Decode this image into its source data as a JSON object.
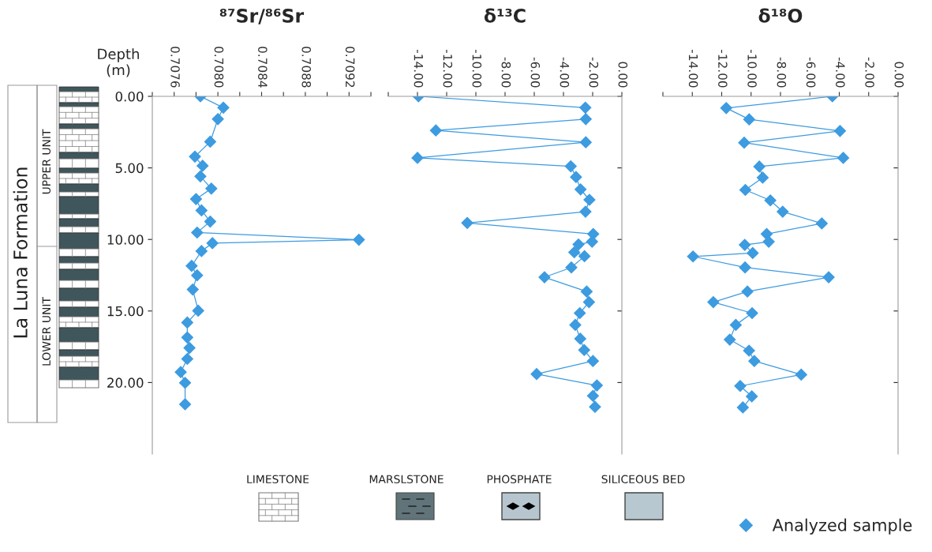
{
  "chart_data": [
    {
      "type": "line",
      "title": "⁸⁷Sr/⁸⁶Sr",
      "ylabel": "Depth\n(m)",
      "marker": "diamond",
      "line_style": "solid",
      "xlim": [
        0.7074,
        0.7094
      ],
      "xticks": [
        {
          "value": 0.7074,
          "label": null
        },
        0.7076,
        {
          "value": 0.7078,
          "label": null
        },
        {
          "value": 0.708,
          "label": "0.7080"
        },
        {
          "value": 0.7082,
          "label": null
        },
        0.7084,
        {
          "value": 0.7086,
          "label": null
        },
        0.7088,
        {
          "value": 0.709,
          "label": null
        },
        0.7092,
        {
          "value": 0.7094,
          "label": null
        }
      ],
      "ylim": [
        25,
        0
      ],
      "yticks": [
        {
          "value": 0,
          "label": "0.00"
        },
        {
          "value": 5,
          "label": "5.00"
        },
        {
          "value": 10,
          "label": "10.00"
        },
        {
          "value": 15,
          "label": "15.00"
        },
        {
          "value": 20,
          "label": "20.00"
        }
      ],
      "series": [
        {
          "color": "#3d9be0",
          "x": [
            0.70784,
            0.70805,
            0.708,
            0.70793,
            0.70779,
            0.70786,
            0.70784,
            0.70794,
            0.7078,
            0.70785,
            0.70793,
            0.70781,
            0.70929,
            0.70795,
            0.70785,
            0.70776,
            0.70781,
            0.70777,
            0.70782,
            0.70772,
            0.70772,
            0.70774,
            0.70772,
            0.70766,
            0.7077,
            0.7077
          ],
          "values": [
            0,
            0.79,
            1.59,
            3.17,
            4.21,
            4.85,
            5.59,
            6.45,
            7.18,
            7.97,
            8.75,
            9.52,
            10.02,
            10.26,
            10.81,
            11.85,
            12.51,
            13.5,
            14.98,
            15.81,
            16.85,
            17.58,
            18.35,
            19.27,
            20.02,
            21.52
          ]
        }
      ]
    },
    {
      "type": "line",
      "title": "δ¹³C",
      "marker": "diamond",
      "line_style": "solid",
      "tick_labels": "x",
      "xlim": [
        -16,
        0
      ],
      "xticks": [
        {
          "value": -16,
          "label": null
        },
        {
          "value": -14,
          "label": "-14.00"
        },
        {
          "value": -12,
          "label": "-12.00"
        },
        {
          "value": -10,
          "label": "-10.00"
        },
        {
          "value": -8,
          "label": "-8.00"
        },
        {
          "value": -6,
          "label": "-6.00"
        },
        {
          "value": -4,
          "label": "-4.00"
        },
        {
          "value": -2,
          "label": "-2.00"
        },
        {
          "value": 0,
          "label": "0.00"
        }
      ],
      "ylim": [
        25,
        0
      ],
      "yticks": [
        0,
        5,
        10,
        15,
        20
      ],
      "series": [
        {
          "color": "#3d9be0",
          "x": [
            -13.93,
            -2.5,
            -2.47,
            -12.74,
            -2.47,
            -14.0,
            -3.5,
            -3.14,
            -2.83,
            -2.22,
            -2.49,
            -10.59,
            -1.96,
            -2.04,
            -2.97,
            -3.26,
            -2.56,
            -3.46,
            -5.3,
            -2.41,
            -2.25,
            -2.88,
            -3.19,
            -2.85,
            -2.58,
            -1.98,
            -5.84,
            -1.71,
            -1.98,
            -1.84
          ],
          "values": [
            0,
            0.79,
            1.59,
            2.38,
            3.21,
            4.3,
            4.89,
            5.64,
            6.5,
            7.23,
            8.06,
            8.85,
            9.62,
            10.16,
            10.35,
            10.9,
            11.17,
            11.96,
            12.64,
            13.64,
            14.38,
            15.15,
            15.97,
            16.94,
            17.73,
            18.5,
            19.41,
            20.2,
            20.93,
            21.7
          ]
        }
      ]
    },
    {
      "type": "line",
      "title": "δ¹⁸O",
      "marker": "diamond",
      "line_style": "solid",
      "tick_labels": "x",
      "legend": "bottom right",
      "xlim": [
        -16,
        0
      ],
      "xticks": [
        {
          "value": -16,
          "label": null
        },
        {
          "value": -14,
          "label": "-14.00"
        },
        {
          "value": -12,
          "label": "-12.00"
        },
        {
          "value": -10,
          "label": "-10.00"
        },
        {
          "value": -8,
          "label": "-8.00"
        },
        {
          "value": -6,
          "label": "-6.00"
        },
        {
          "value": -4,
          "label": "-4.00"
        },
        {
          "value": -2,
          "label": "-2.00"
        },
        {
          "value": 0,
          "label": "0.00"
        }
      ],
      "ylim": [
        25,
        0
      ],
      "yticks": [
        0,
        5,
        10,
        15,
        20
      ],
      "series": [
        {
          "name": "Analyzed sample",
          "color": "#3d9be0",
          "x": [
            -4.47,
            -11.69,
            -10.13,
            -3.95,
            -10.47,
            -3.73,
            -9.44,
            -9.21,
            -10.39,
            -8.69,
            -7.85,
            -5.19,
            -8.94,
            -8.8,
            -10.43,
            -9.89,
            -13.95,
            -10.41,
            -4.72,
            -10.25,
            -12.57,
            -9.93,
            -11.04,
            -11.45,
            -10.14,
            -9.78,
            -6.59,
            -10.74,
            -9.95,
            -10.56
          ],
          "values": [
            0,
            0.82,
            1.61,
            2.42,
            3.24,
            4.3,
            4.91,
            5.68,
            6.54,
            7.27,
            8.06,
            8.88,
            9.62,
            10.16,
            10.38,
            10.95,
            11.19,
            11.96,
            12.64,
            13.64,
            14.38,
            15.15,
            15.97,
            17.0,
            17.77,
            18.5,
            19.45,
            20.24,
            20.97,
            21.74
          ]
        }
      ]
    },
    {
      "type": "other",
      "annotations": [
        "La Luna Formation",
        "UPPER UNIT",
        "LOWER UNIT",
        "LIMESTONE",
        "MARSLSTONE",
        "PHOSPHATE",
        "SILICEOUS BED"
      ]
    }
  ]
}
